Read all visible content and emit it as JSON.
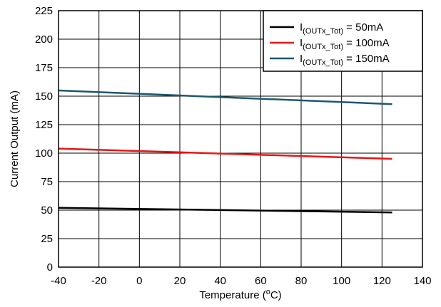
{
  "chart_data": {
    "type": "line",
    "xlabel": {
      "main": "Temperature (",
      "sup": "o",
      "tail": "C)"
    },
    "ylabel": "Current Output (mA)",
    "xlim": [
      -40,
      140
    ],
    "ylim": [
      0,
      225
    ],
    "xticks": [
      -40,
      -20,
      0,
      20,
      40,
      60,
      80,
      100,
      120,
      140
    ],
    "yticks": [
      0,
      25,
      50,
      75,
      100,
      125,
      150,
      175,
      200,
      225
    ],
    "grid": true,
    "legend_position": "top-right",
    "series": [
      {
        "name": {
          "prefix": "I",
          "sub": "(OUTx_Tot)",
          "suffix": " = 50mA"
        },
        "color": "#000000",
        "x": [
          -40,
          125
        ],
        "y": [
          52,
          48
        ]
      },
      {
        "name": {
          "prefix": "I",
          "sub": "(OUTx_Tot)",
          "suffix": " = 100mA"
        },
        "color": "#e81414",
        "x": [
          -40,
          125
        ],
        "y": [
          104,
          95
        ]
      },
      {
        "name": {
          "prefix": "I",
          "sub": "(OUTx_Tot)",
          "suffix": " = 150mA"
        },
        "color": "#1c5870",
        "x": [
          -40,
          125
        ],
        "y": [
          155,
          143
        ]
      }
    ]
  }
}
